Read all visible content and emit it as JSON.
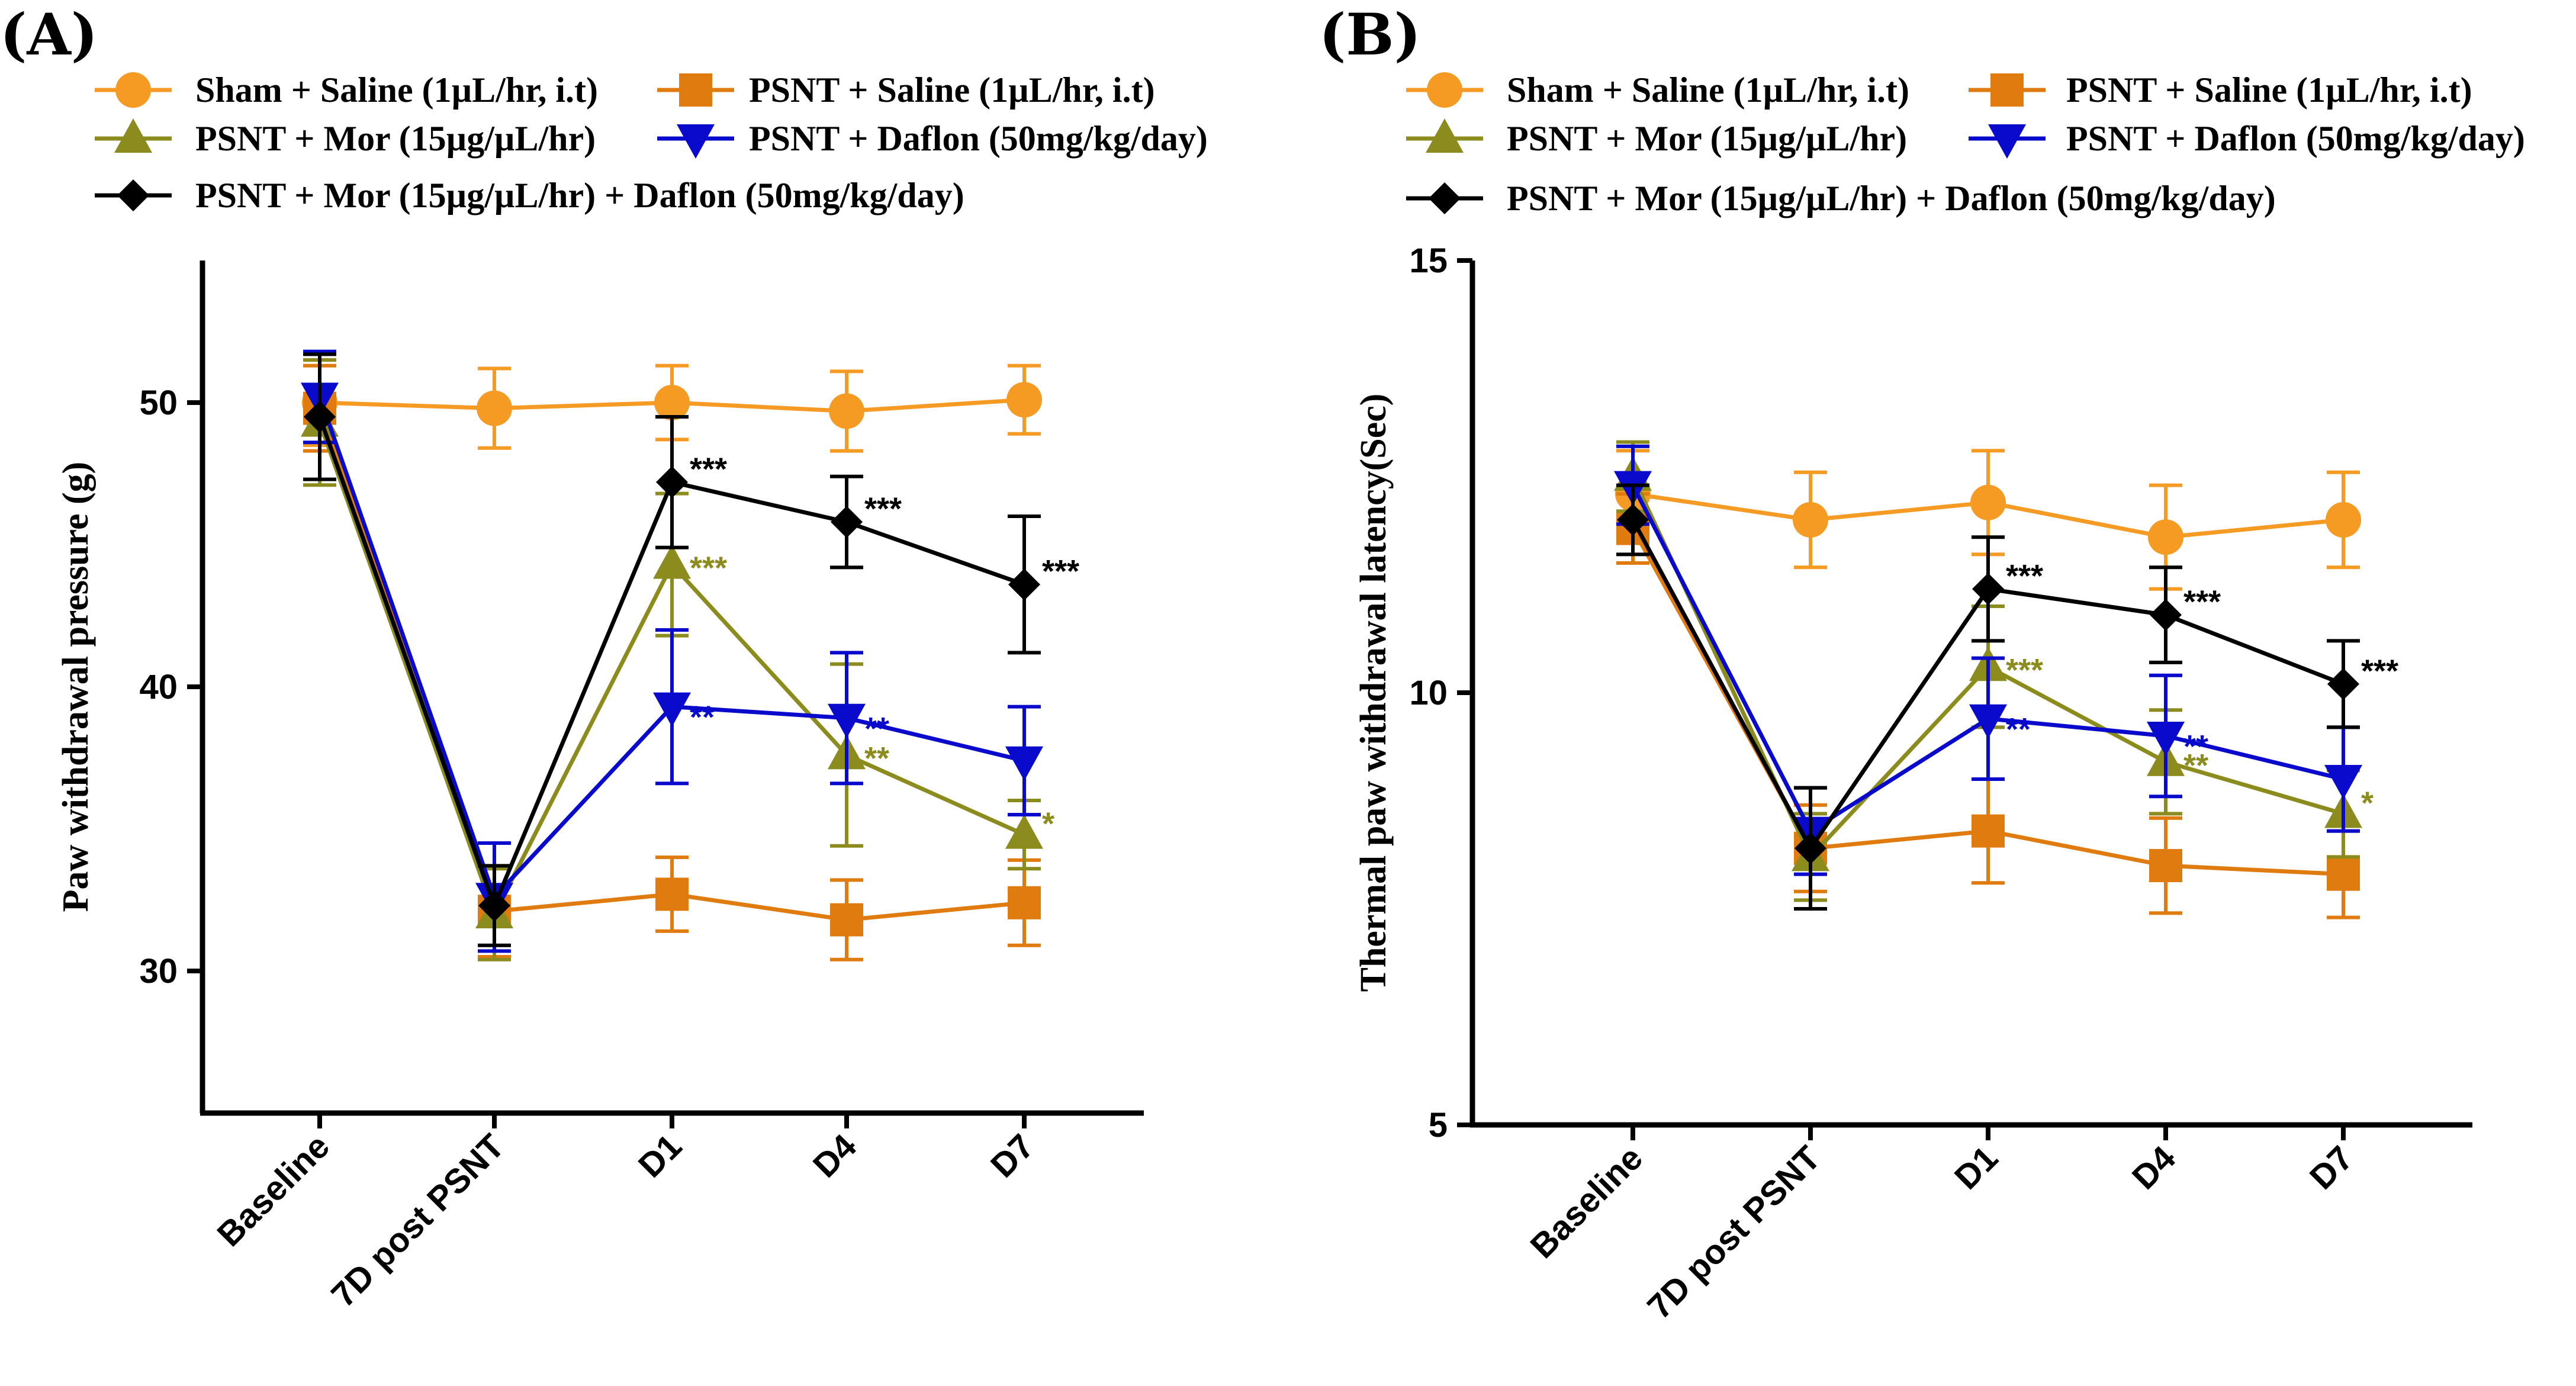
{
  "chart_data": [
    {
      "type": "line",
      "panel_label": "(A)",
      "ylabel": "Paw withdrawal pressure (g)",
      "ylim": [
        25,
        55
      ],
      "yticks": [
        "30",
        "40",
        "50"
      ],
      "categories": [
        "Baseline",
        "7D post PSNT",
        "D1",
        "D4",
        "D7"
      ],
      "series": [
        {
          "name": "Sham + Saline (1µL/hr, i.t)",
          "color": "#F59A23",
          "marker": "circle",
          "values": [
            50.0,
            49.8,
            50.0,
            49.7,
            50.1
          ],
          "errors": [
            1.5,
            1.4,
            1.3,
            1.4,
            1.2
          ],
          "sig": [
            "",
            "",
            "",
            "",
            ""
          ]
        },
        {
          "name": "PSNT + Saline (1µL/hr, i.t)",
          "color": "#E07B10",
          "marker": "square",
          "values": [
            49.8,
            32.1,
            32.7,
            31.8,
            32.4
          ],
          "errors": [
            1.5,
            1.6,
            1.3,
            1.4,
            1.5
          ],
          "sig": [
            "",
            "",
            "",
            "",
            ""
          ]
        },
        {
          "name": "PSNT + Mor (15µg/µL/hr)",
          "color": "#8B8B1E",
          "marker": "triangle-up",
          "values": [
            49.3,
            32.0,
            44.3,
            37.6,
            34.8
          ],
          "errors": [
            2.2,
            1.6,
            2.5,
            3.2,
            1.2
          ],
          "sig": [
            "",
            "",
            "***",
            "**",
            "*"
          ]
        },
        {
          "name": "PSNT + Daflon (50mg/kg/day)",
          "color": "#0A0ACC",
          "marker": "triangle-down",
          "values": [
            50.2,
            32.6,
            39.3,
            38.9,
            37.4
          ],
          "errors": [
            1.6,
            1.9,
            2.7,
            2.3,
            1.9
          ],
          "sig": [
            "",
            "",
            "**",
            "**",
            ""
          ]
        },
        {
          "name": "PSNT + Mor  (15µg/µL/hr) + Daflon (50mg/kg/day)",
          "color": "#000000",
          "marker": "diamond",
          "values": [
            49.5,
            32.3,
            47.2,
            45.8,
            43.6
          ],
          "errors": [
            2.2,
            1.4,
            2.3,
            1.6,
            2.4
          ],
          "sig": [
            "",
            "",
            "***",
            "***",
            "***"
          ]
        }
      ]
    },
    {
      "type": "line",
      "panel_label": "(B)",
      "ylabel": "Thermal paw withdrawal latency(Sec)",
      "ylim": [
        5,
        15
      ],
      "yticks": [
        "5",
        "10",
        "15"
      ],
      "categories": [
        "Baseline",
        "7D post PSNT",
        "D1",
        "D4",
        "D7"
      ],
      "series": [
        {
          "name": "Sham + Saline (1µL/hr, i.t)",
          "color": "#F59A23",
          "marker": "circle",
          "values": [
            12.3,
            12.0,
            12.2,
            11.8,
            12.0
          ],
          "errors": [
            0.5,
            0.55,
            0.6,
            0.6,
            0.55
          ],
          "sig": [
            "",
            "",
            "",
            "",
            ""
          ]
        },
        {
          "name": "PSNT + Saline (1µL/hr, i.t)",
          "color": "#E07B10",
          "marker": "square",
          "values": [
            11.9,
            8.2,
            8.4,
            8.0,
            7.9
          ],
          "errors": [
            0.4,
            0.5,
            0.6,
            0.55,
            0.5
          ],
          "sig": [
            "",
            "",
            "",
            "",
            ""
          ]
        },
        {
          "name": "PSNT + Mor (15µg/µL/hr)",
          "color": "#8B8B1E",
          "marker": "triangle-up",
          "values": [
            12.5,
            8.1,
            10.3,
            9.2,
            8.6
          ],
          "errors": [
            0.4,
            0.5,
            0.7,
            0.6,
            0.5
          ],
          "sig": [
            "",
            "",
            "***",
            "**",
            "*"
          ]
        },
        {
          "name": "PSNT + Daflon (50mg/kg/day)",
          "color": "#0A0ACC",
          "marker": "triangle-down",
          "values": [
            12.4,
            8.4,
            9.7,
            9.5,
            9.0
          ],
          "errors": [
            0.45,
            0.5,
            0.7,
            0.7,
            0.6
          ],
          "sig": [
            "",
            "",
            "**",
            "**",
            ""
          ]
        },
        {
          "name": "PSNT + Mor  (15µg/µL/hr) + Daflon (50mg/kg/day)",
          "color": "#000000",
          "marker": "diamond",
          "values": [
            12.0,
            8.2,
            11.2,
            10.9,
            10.1
          ],
          "errors": [
            0.4,
            0.7,
            0.6,
            0.55,
            0.5
          ],
          "sig": [
            "",
            "",
            "***",
            "***",
            "***"
          ]
        }
      ]
    }
  ]
}
